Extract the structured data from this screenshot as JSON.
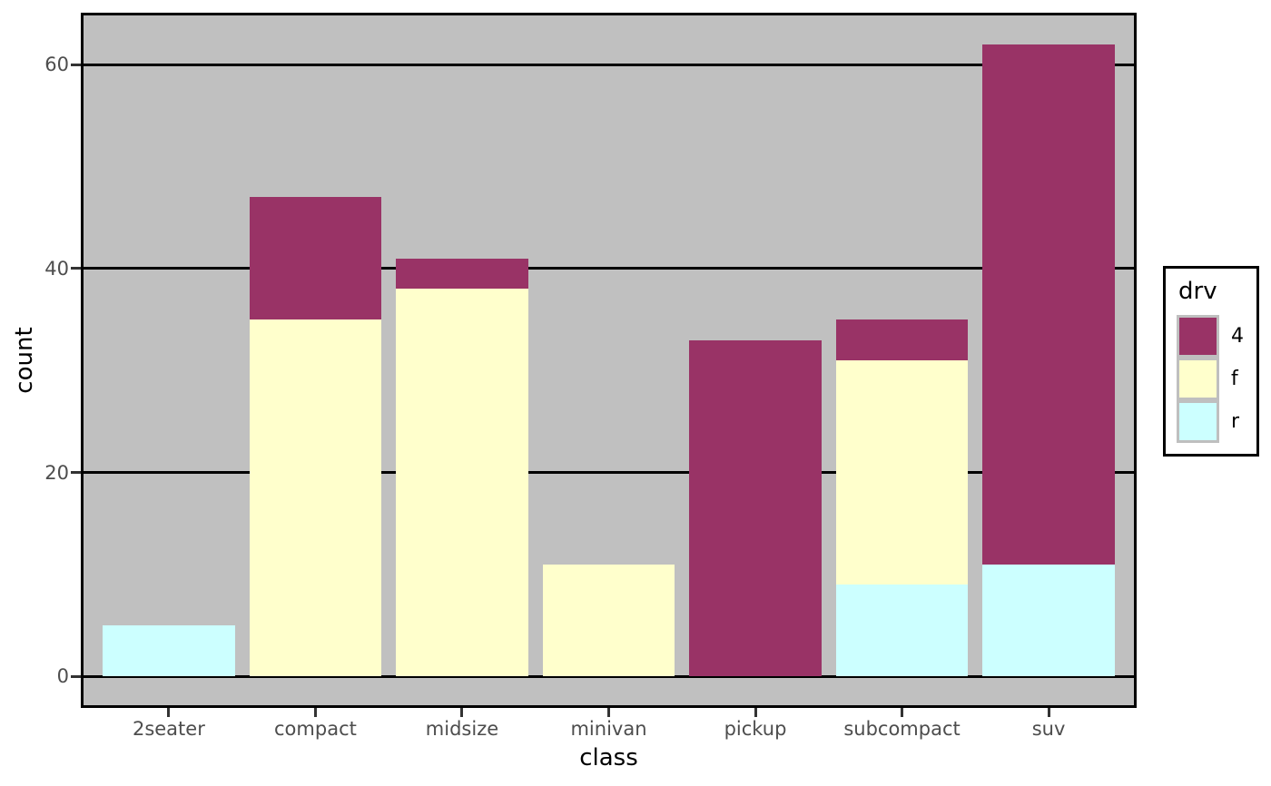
{
  "chart_data": {
    "type": "bar",
    "stacked": true,
    "xlabel": "class",
    "ylabel": "count",
    "categories": [
      "2seater",
      "compact",
      "midsize",
      "minivan",
      "pickup",
      "subcompact",
      "suv"
    ],
    "series": [
      {
        "name": "4",
        "color": "#993366",
        "values": [
          0,
          12,
          3,
          0,
          33,
          4,
          51
        ]
      },
      {
        "name": "f",
        "color": "#FFFFCC",
        "values": [
          0,
          35,
          38,
          11,
          0,
          22,
          0
        ]
      },
      {
        "name": "r",
        "color": "#CCFFFF",
        "values": [
          5,
          0,
          0,
          0,
          0,
          9,
          11
        ]
      }
    ],
    "stack_order_bottom_to_top": [
      "r",
      "f",
      "4"
    ],
    "yticks": [
      0,
      20,
      40,
      60
    ],
    "ylim": [
      -3.1,
      65.1
    ],
    "bar_width_fraction": 0.9,
    "legend": {
      "title": "drv",
      "position": "right",
      "entries": [
        "4",
        "f",
        "r"
      ]
    },
    "grid": "horizontal",
    "colors": {
      "panel_background": "#C0C0C0",
      "outer_background": "#FFFFFF",
      "gridline": "#000000",
      "panel_border": "#000000",
      "tick_mark": "#333333",
      "tick_label": "#4D4D4D",
      "axis_title": "#000000",
      "legend_border": "#000000",
      "legend_background": "#FFFFFF",
      "legend_key_background": "#BFBFBF"
    }
  }
}
